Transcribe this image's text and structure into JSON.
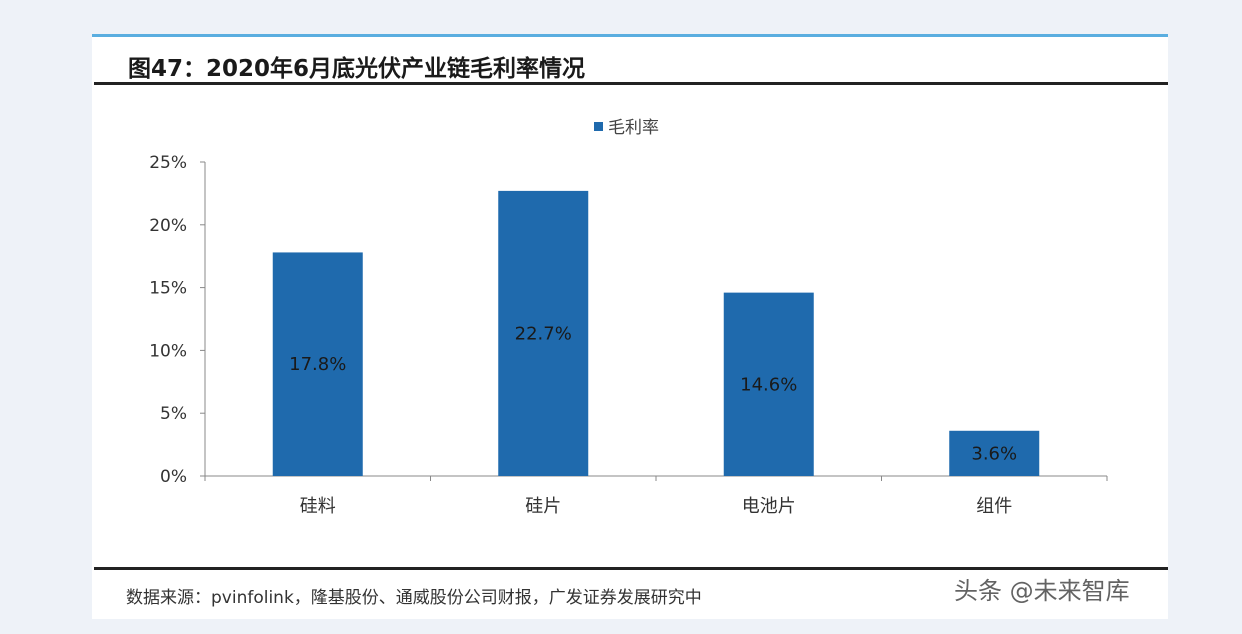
{
  "title": "图47：2020年6月底光伏产业链毛利率情况",
  "source": "数据来源：pvinfolink，隆基股份、通威股份公司财报，广发证券发展研究中",
  "watermark": "头条 @未来智库",
  "chart_data": {
    "type": "bar",
    "categories": [
      "硅料",
      "硅片",
      "电池片",
      "组件"
    ],
    "series": [
      {
        "name": "毛利率",
        "values": [
          17.8,
          22.7,
          14.6,
          3.6
        ],
        "color": "#1f6aad"
      }
    ],
    "data_labels": [
      "17.8%",
      "22.7%",
      "14.6%",
      "3.6%"
    ],
    "yticks": [
      "0%",
      "5%",
      "10%",
      "15%",
      "20%",
      "25%"
    ],
    "ylim": [
      0,
      25
    ],
    "legend": "top-center",
    "grid": false
  }
}
